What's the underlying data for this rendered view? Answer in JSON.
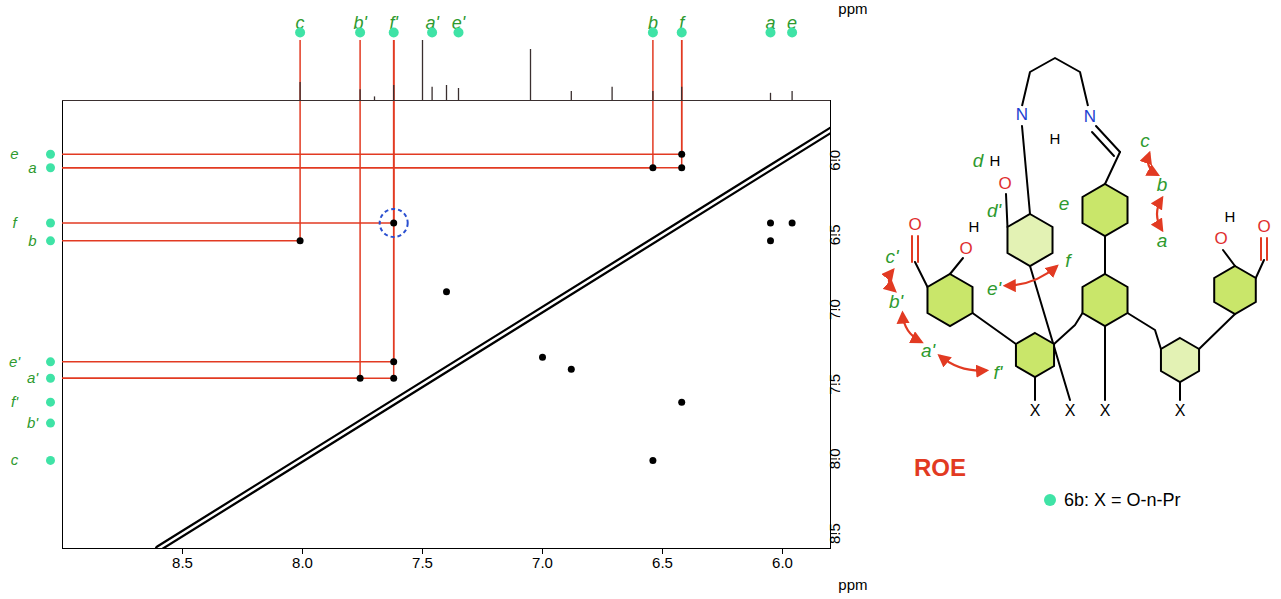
{
  "chart_data": {
    "type": "2d_nmr",
    "x_label": "ppm",
    "y_label": "ppm",
    "xlim": [
      9.0,
      5.8
    ],
    "ylim": [
      5.6,
      8.6
    ],
    "xticks": [
      8.5,
      {
        "value": 8,
        "label": "8.0"
      },
      7.5,
      {
        "value": 7,
        "label": "7.0"
      },
      6.5,
      {
        "value": 6,
        "label": "6.0"
      }
    ],
    "yticks": [
      {
        "value": 6,
        "label": "6.0"
      },
      6.5,
      {
        "value": 7,
        "label": "7.0"
      },
      7.5,
      {
        "value": 8,
        "label": "8.0"
      },
      8.5
    ],
    "signals": [
      {
        "label": "c",
        "ppm": 8.01
      },
      {
        "label": "b'",
        "ppm": 7.76
      },
      {
        "label": "f'",
        "ppm": 7.62
      },
      {
        "label": "a'",
        "ppm": 7.46
      },
      {
        "label": "e'",
        "ppm": 7.35
      },
      {
        "label": "b",
        "ppm": 6.54
      },
      {
        "label": "f",
        "ppm": 6.42
      },
      {
        "label": "a",
        "ppm": 6.05
      },
      {
        "label": "e",
        "ppm": 5.96
      }
    ],
    "projection": {
      "ppm": [
        8.01,
        7.76,
        7.7,
        7.62,
        7.5,
        7.46,
        7.4,
        7.35,
        7.05,
        6.88,
        6.71,
        6.54,
        6.42,
        6.05,
        5.96
      ],
      "intensity": [
        0.3,
        0.18,
        0.06,
        0.25,
        1.5,
        0.22,
        0.25,
        0.2,
        0.85,
        0.15,
        0.22,
        0.15,
        0.22,
        0.12,
        0.15
      ],
      "ylim": [
        0,
        1
      ]
    },
    "cross_peaks": {
      "x": [
        6.42,
        6.42,
        6.54,
        8.01,
        7.62,
        7.62,
        7.62,
        7.76,
        5.96,
        6.05,
        6.05,
        6.54,
        6.42,
        7.4,
        6.88,
        7.0
      ],
      "y": [
        5.96,
        6.05,
        6.05,
        6.54,
        6.42,
        7.35,
        7.46,
        7.46,
        6.42,
        6.42,
        6.54,
        8.01,
        7.62,
        6.88,
        7.4,
        7.32
      ]
    },
    "correlations": {
      "x": [
        6.42,
        6.42,
        6.54,
        8.01,
        7.62,
        7.62,
        7.62,
        7.76
      ],
      "y": [
        5.96,
        6.05,
        6.05,
        6.54,
        6.42,
        7.35,
        7.46,
        7.46
      ]
    },
    "highlighted_cross_peak": {
      "x": 7.62,
      "y": 6.42
    }
  },
  "structure": {
    "proton_labels": [
      "a",
      "b",
      "c",
      "d",
      "e",
      "f",
      "a'",
      "b'",
      "c'",
      "d'",
      "e'",
      "f'"
    ],
    "atoms": {
      "oxygen": "O",
      "hydrogen": "H",
      "nitrogen": "N",
      "substituent": "X"
    },
    "roe_pairs": [
      [
        "c",
        "b"
      ],
      [
        "b",
        "a"
      ],
      [
        "e'",
        "f"
      ],
      [
        "c'",
        "b'"
      ],
      [
        "b'",
        "a'"
      ],
      [
        "a'",
        "f'"
      ]
    ],
    "roe_label": "ROE",
    "caption": "6b: X = O-n-Pr"
  }
}
